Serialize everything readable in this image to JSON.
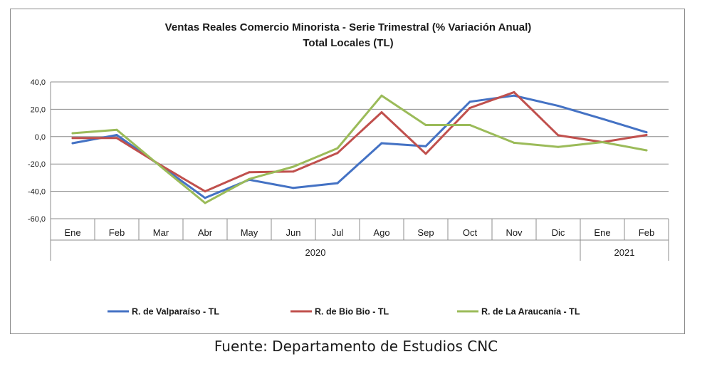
{
  "chart_data": {
    "type": "line",
    "title": "Ventas Reales Comercio Minorista - Serie Trimestral (% Variación Anual)",
    "subtitle": "Total Locales (TL)",
    "categories": [
      "Ene",
      "Feb",
      "Mar",
      "Abr",
      "May",
      "Jun",
      "Jul",
      "Ago",
      "Sep",
      "Oct",
      "Nov",
      "Dic",
      "Ene",
      "Feb"
    ],
    "year_groups": [
      {
        "label": "2020",
        "start": 0,
        "end": 11
      },
      {
        "label": "2021",
        "start": 12,
        "end": 13
      }
    ],
    "ylim": [
      -60,
      40
    ],
    "yticks": [
      "40,0",
      "20,0",
      "0,0",
      "-20,0",
      "-40,0",
      "-60,0"
    ],
    "ytick_values": [
      40,
      20,
      0,
      -20,
      -40,
      -60
    ],
    "grid": true,
    "legend_position": "bottom",
    "series": [
      {
        "name": "R. de Valparaíso - TL",
        "color": "#4472c4",
        "values": [
          -4.8,
          1.2,
          -21.5,
          -44.8,
          -31.5,
          -37.5,
          -34.0,
          -4.8,
          -7.0,
          25.5,
          30.0,
          22.5,
          13.0,
          3.2
        ]
      },
      {
        "name": "R. de Bio Bio - TL",
        "color": "#c0504d",
        "values": [
          -1.0,
          -1.0,
          -21.0,
          -40.0,
          -26.0,
          -25.5,
          -12.0,
          17.8,
          -12.5,
          21.0,
          32.5,
          1.0,
          -4.0,
          1.2
        ]
      },
      {
        "name": "R. de La Araucanía - TL",
        "color": "#9bbb59",
        "values": [
          2.5,
          5.0,
          -22.0,
          -48.5,
          -31.0,
          -22.0,
          -8.5,
          30.0,
          8.5,
          8.5,
          -4.5,
          -7.5,
          -4.0,
          -10.0
        ]
      }
    ]
  },
  "source": "Fuente: Departamento de Estudios CNC"
}
